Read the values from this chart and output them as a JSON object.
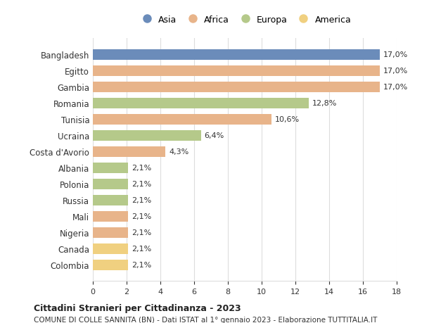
{
  "countries": [
    "Bangladesh",
    "Egitto",
    "Gambia",
    "Romania",
    "Tunisia",
    "Ucraina",
    "Costa d'Avorio",
    "Albania",
    "Polonia",
    "Russia",
    "Mali",
    "Nigeria",
    "Canada",
    "Colombia"
  ],
  "values": [
    17.0,
    17.0,
    17.0,
    12.8,
    10.6,
    6.4,
    4.3,
    2.1,
    2.1,
    2.1,
    2.1,
    2.1,
    2.1,
    2.1
  ],
  "labels": [
    "17,0%",
    "17,0%",
    "17,0%",
    "12,8%",
    "10,6%",
    "6,4%",
    "4,3%",
    "2,1%",
    "2,1%",
    "2,1%",
    "2,1%",
    "2,1%",
    "2,1%",
    "2,1%"
  ],
  "continents": [
    "Asia",
    "Africa",
    "Africa",
    "Europa",
    "Africa",
    "Europa",
    "Africa",
    "Europa",
    "Europa",
    "Europa",
    "Africa",
    "Africa",
    "America",
    "America"
  ],
  "colors": {
    "Asia": "#6b8cba",
    "Africa": "#e8b48a",
    "Europa": "#b5c98a",
    "America": "#f0d080"
  },
  "legend_order": [
    "Asia",
    "Africa",
    "Europa",
    "America"
  ],
  "title1": "Cittadini Stranieri per Cittadinanza - 2023",
  "title2": "COMUNE DI COLLE SANNITA (BN) - Dati ISTAT al 1° gennaio 2023 - Elaborazione TUTTITALIA.IT",
  "xlim": [
    0,
    18
  ],
  "xticks": [
    0,
    2,
    4,
    6,
    8,
    10,
    12,
    14,
    16,
    18
  ],
  "background_color": "#ffffff",
  "grid_color": "#dddddd"
}
